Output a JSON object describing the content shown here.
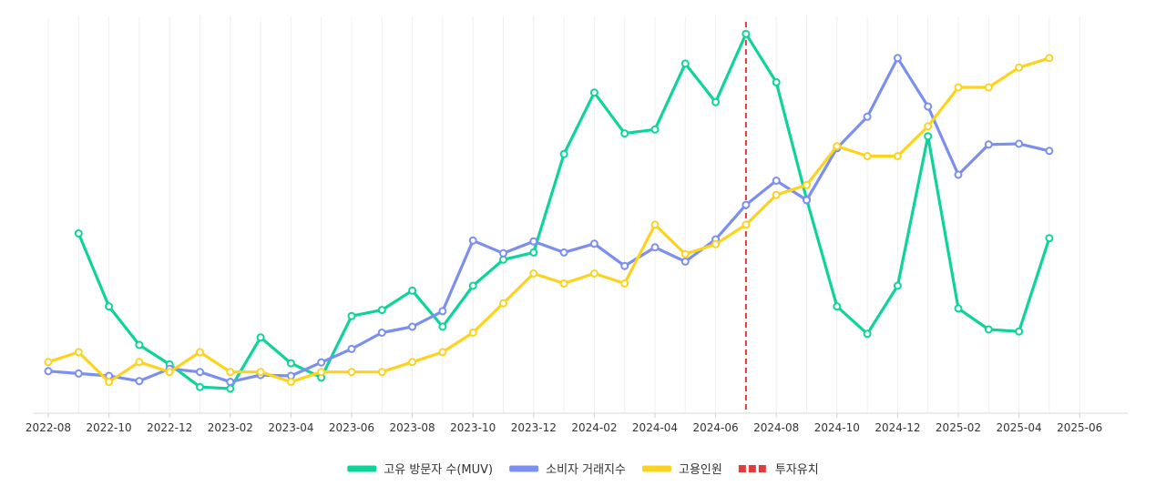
{
  "chart_data": {
    "type": "line",
    "title": "",
    "xlabel": "",
    "ylabel": "",
    "x_start": "2022-08",
    "x_end": "2025-06",
    "x_tick_labels": [
      "2022-08",
      "2022-10",
      "2022-12",
      "2023-02",
      "2023-04",
      "2023-06",
      "2023-08",
      "2023-10",
      "2023-12",
      "2024-02",
      "2024-04",
      "2024-06",
      "2024-08",
      "2024-10",
      "2024-12",
      "2025-02",
      "2025-04",
      "2025-06"
    ],
    "ylim": [
      0,
      100
    ],
    "grid": "vertical",
    "legend_position": "bottom-center",
    "series": [
      {
        "name": "고유 방문자 수(MUV)",
        "color": "#0ed49c",
        "start": "2022-09",
        "values": [
          45.3,
          26.9,
          17.2,
          12.3,
          6.6,
          6.2,
          19.1,
          12.6,
          9.0,
          24.5,
          26.0,
          30.9,
          21.8,
          32.1,
          38.7,
          40.5,
          65.3,
          80.8,
          70.5,
          71.5,
          88.1,
          78.4,
          95.6,
          83.4,
          53.9,
          26.9,
          20.0,
          32.1,
          69.8,
          26.4,
          21.1,
          20.6,
          44.1
        ]
      },
      {
        "name": "소비자 거래지수",
        "color": "#7b8ff0",
        "start": "2022-08",
        "values": [
          10.6,
          10.0,
          9.4,
          8.1,
          11.2,
          10.4,
          7.9,
          9.6,
          9.4,
          12.8,
          16.2,
          20.3,
          21.8,
          25.7,
          43.5,
          40.3,
          43.3,
          40.5,
          42.7,
          37.1,
          41.8,
          38.2,
          43.8,
          52.5,
          58.6,
          53.7,
          66.8,
          74.7,
          89.5,
          77.3,
          60.1,
          67.7,
          67.9,
          66.1
        ]
      },
      {
        "name": "고용인원",
        "color": "#fcd31f",
        "start": "2022-08",
        "values": [
          12.9,
          15.4,
          7.9,
          12.9,
          10.4,
          15.4,
          10.4,
          10.4,
          7.9,
          10.4,
          10.4,
          10.4,
          12.9,
          15.4,
          20.3,
          27.7,
          35.2,
          32.7,
          35.2,
          32.7,
          47.5,
          40.1,
          42.6,
          47.5,
          55.0,
          57.5,
          67.3,
          64.8,
          64.8,
          72.3,
          82.1,
          82.1,
          87.1,
          89.5
        ]
      }
    ],
    "annotations": [
      {
        "name": "투자유치",
        "type": "vertical-dashed-line",
        "x": "2024-07",
        "color": "#e23b3b"
      }
    ]
  }
}
